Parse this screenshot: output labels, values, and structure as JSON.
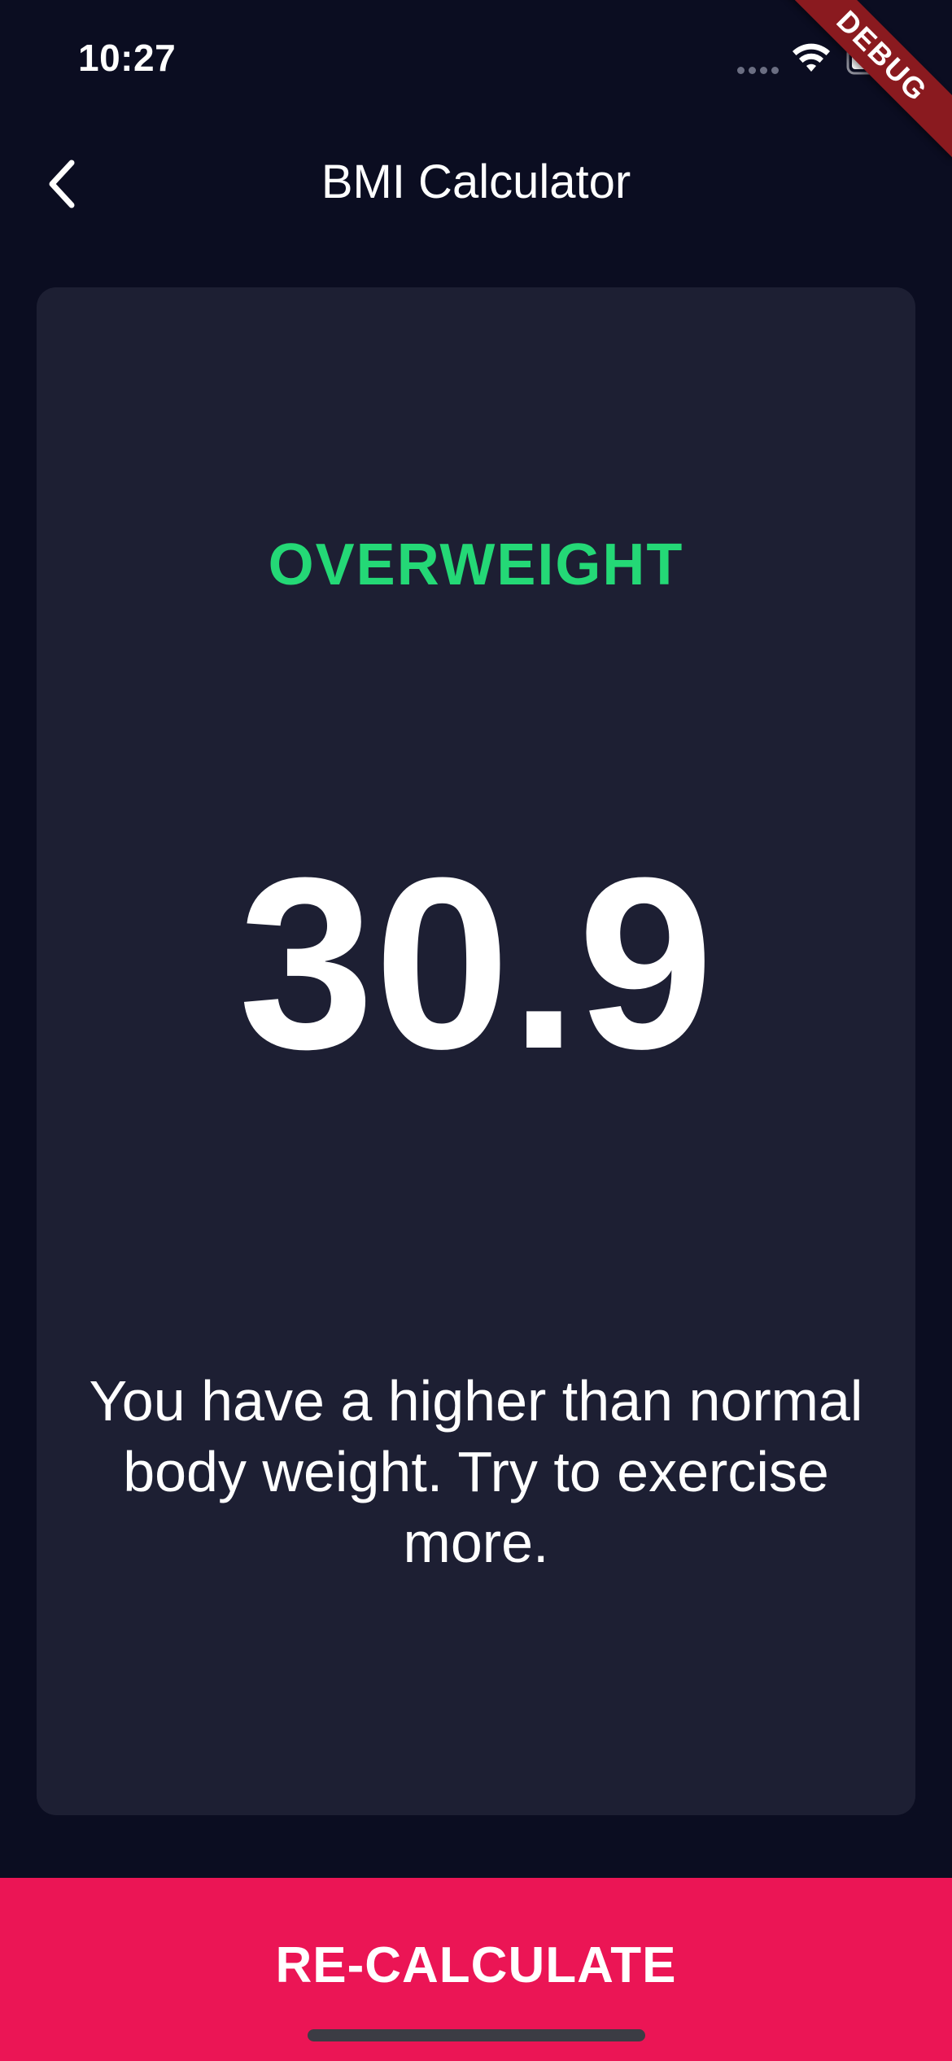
{
  "status_bar": {
    "time": "10:27",
    "signal_icon": "cellular-signal-icon",
    "wifi_icon": "wifi-icon",
    "battery_icon": "battery-icon"
  },
  "debug_banner": {
    "label": "DEBUG"
  },
  "app_bar": {
    "title": "BMI Calculator",
    "back_icon": "chevron-left-icon"
  },
  "result": {
    "status": "OVERWEIGHT",
    "bmi_value": "30.9",
    "message": "You have a higher than normal body weight. Try to exercise more."
  },
  "bottom_button": {
    "label": "RE-CALCULATE"
  },
  "colors": {
    "background": "#0b0d21",
    "card": "#1d1f33",
    "status_green": "#24d876",
    "accent_pink": "#eb1555"
  }
}
